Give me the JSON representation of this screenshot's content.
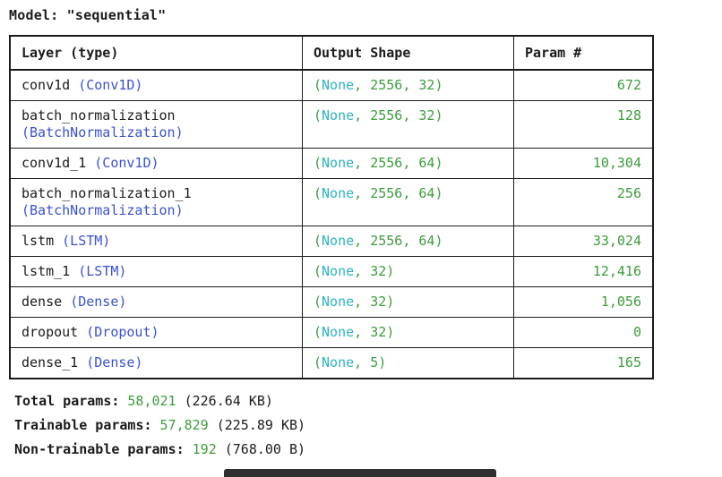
{
  "header": {
    "label": "Model:",
    "value": "\"sequential\""
  },
  "table": {
    "headers": [
      "Layer (type)",
      "Output Shape",
      "Param #"
    ],
    "rows": [
      {
        "name": "conv1d",
        "type": "(Conv1D)",
        "two_line": false,
        "shape": {
          "open": "(",
          "none": "None",
          "rest": ", 2556, 32)"
        },
        "params": "672"
      },
      {
        "name": "batch_normalization",
        "type": "(BatchNormalization)",
        "two_line": true,
        "shape": {
          "open": "(",
          "none": "None",
          "rest": ", 2556, 32)"
        },
        "params": "128"
      },
      {
        "name": "conv1d_1",
        "type": "(Conv1D)",
        "two_line": false,
        "shape": {
          "open": "(",
          "none": "None",
          "rest": ", 2556, 64)"
        },
        "params": "10,304"
      },
      {
        "name": "batch_normalization_1",
        "type": "(BatchNormalization)",
        "two_line": true,
        "shape": {
          "open": "(",
          "none": "None",
          "rest": ", 2556, 64)"
        },
        "params": "256"
      },
      {
        "name": "lstm",
        "type": "(LSTM)",
        "two_line": false,
        "shape": {
          "open": "(",
          "none": "None",
          "rest": ", 2556, 64)"
        },
        "params": "33,024"
      },
      {
        "name": "lstm_1",
        "type": "(LSTM)",
        "two_line": false,
        "shape": {
          "open": "(",
          "none": "None",
          "rest": ", 32)"
        },
        "params": "12,416"
      },
      {
        "name": "dense",
        "type": "(Dense)",
        "two_line": false,
        "shape": {
          "open": "(",
          "none": "None",
          "rest": ", 32)"
        },
        "params": "1,056"
      },
      {
        "name": "dropout",
        "type": "(Dropout)",
        "two_line": false,
        "shape": {
          "open": "(",
          "none": "None",
          "rest": ", 32)"
        },
        "params": "0"
      },
      {
        "name": "dense_1",
        "type": "(Dense)",
        "two_line": false,
        "shape": {
          "open": "(",
          "none": "None",
          "rest": ", 5)"
        },
        "params": "165"
      }
    ]
  },
  "summary": [
    {
      "label": "Total params:",
      "value": "58,021",
      "size": "(226.64 KB)"
    },
    {
      "label": "Trainable params:",
      "value": "57,829",
      "size": "(225.89 KB)"
    },
    {
      "label": "Non-trainable params:",
      "value": "192",
      "size": "(768.00 B)"
    }
  ],
  "colors": {
    "layer_type_blue": "#3b51d2",
    "none_cyan": "#2eb3c2",
    "number_green": "#3c9c3c",
    "text": "#1b1b1b",
    "background": "#ffffff"
  }
}
